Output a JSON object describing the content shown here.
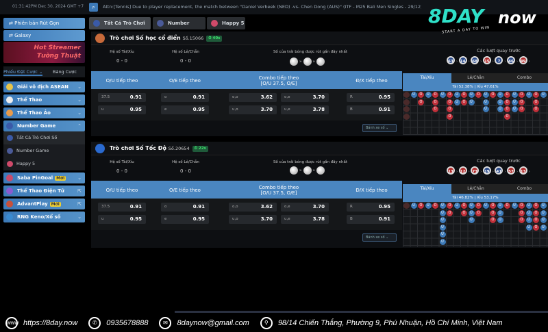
{
  "topbar": {
    "clock": "01:31:42PM Dec 30, 2024 GMT +7",
    "ticker": "Attn:[Tennis] Due to player replacement, the match between \"Daniel Verbeek (NED) -vs- Chen Dong (AUS)\" (ITF - M25 Bali Men Singles - 29/12). All bets taken ... REFUNDED. Parlay counts"
  },
  "logo": {
    "brand": "8DAY",
    "suffix": "now",
    "tagline": "START A DAY TO WIN"
  },
  "sidebar": {
    "version_btn": "Phiên bản Rút Gọn",
    "galaxy_btn": "Galaxy",
    "banner": [
      "Hot Streamer",
      "Tường Thuật"
    ],
    "tab_bets": "Phiếu Đặt Cược",
    "tab_table": "Bảng Cược",
    "menus": [
      {
        "label": "Giải vô địch ASEAN"
      },
      {
        "label": "Thể Thao"
      },
      {
        "label": "Thể Thao Ảo"
      },
      {
        "label": "Number Game"
      }
    ],
    "sub": [
      "Tất Cả Trò Chơi Số",
      "Number Game",
      "Happy 5"
    ],
    "menus2": [
      {
        "label": "Saba PinGoal",
        "badge": "Mới"
      },
      {
        "label": "Thể Thao Điện Tử"
      },
      {
        "label": "AdvantPlay",
        "badge": "Mới"
      },
      {
        "label": "RNG Keno/Xổ số"
      }
    ]
  },
  "tabs": [
    "Tất Cả Trò Chơi Số",
    "Number Game",
    "Happy 5"
  ],
  "panels": [
    {
      "title": "Trò chơi Số học cổ điển",
      "number": "Số.15066",
      "timer": "40s",
      "stat_ou_label": "Hệ số Tài/Xỉu",
      "stat_ou": "0 - 0",
      "stat_oe_label": "Hệ số Lẻ/Chẵn",
      "stat_oe": "0 - 0",
      "balls_label": "Số của trái bóng được rút gần đây nhất",
      "headers": [
        "O/U tiếp theo",
        "O/E tiếp theo",
        "Combo tiếp theo\n[O/U 37.5, O/E]",
        "Đ/X tiếp theo"
      ],
      "odds": {
        "ou": [
          [
            "37.5",
            "0.91"
          ],
          [
            "u",
            "0.95"
          ]
        ],
        "oe": [
          [
            "o",
            "0.91"
          ],
          [
            "e",
            "0.95"
          ]
        ],
        "combo": [
          [
            "o,o",
            "3.62"
          ],
          [
            "o,e",
            "3.70"
          ],
          [
            "u,o",
            "3.70"
          ],
          [
            "u,e",
            "3.78"
          ]
        ],
        "dx": [
          [
            "R",
            "0.95"
          ],
          [
            "B",
            "0.91"
          ]
        ]
      },
      "dropdown": "Bánh xe số",
      "prev_label": "Các lượt quay trước",
      "prev": [
        {
          "n": "63",
          "c": "#2a4a8a"
        },
        {
          "n": "14",
          "c": "#2a4a8a"
        },
        {
          "n": "68",
          "c": "#2a4a8a"
        },
        {
          "n": "15",
          "c": "#b02a2a"
        },
        {
          "n": "7",
          "c": "#2a4a8a"
        },
        {
          "n": "46",
          "c": "#2a4a8a"
        },
        {
          "n": "49",
          "c": "#b02a2a"
        }
      ],
      "road_tabs": [
        "Tài/Xỉu",
        "Lẻ/Chẵn",
        "Combo"
      ],
      "pct": "Tài 52.38% | Xỉu 47.61%",
      "road": [
        "dUOUOUOUOUOUOUOUOUOU",
        "d.O.O.OUOU.U.UOUO.O.",
        "d...O.O....U.UOUO.O.",
        "d.....O.......O....."
      ]
    },
    {
      "title": "Trò chơi Số Tốc Độ",
      "number": "Số.20654",
      "timer": "22s",
      "stat_ou_label": "Hệ số Tài/Xỉu",
      "stat_ou": "0 - 0",
      "stat_oe_label": "Hệ số Lẻ/Chẵn",
      "stat_oe": "0 - 0",
      "balls_label": "Số của trái bóng được rút gần đây nhất",
      "headers": [
        "O/U tiếp theo",
        "O/E tiếp theo",
        "Combo tiếp theo\n[O/U 37.5, O/E]",
        "Đ/X tiếp theo"
      ],
      "odds": {
        "ou": [
          [
            "37.5",
            "0.91"
          ],
          [
            "u",
            "0.95"
          ]
        ],
        "oe": [
          [
            "o",
            "0.91"
          ],
          [
            "e",
            "0.95"
          ]
        ],
        "combo": [
          [
            "o,o",
            "3.62"
          ],
          [
            "o,e",
            "3.70"
          ],
          [
            "u,o",
            "3.70"
          ],
          [
            "u,e",
            "3.78"
          ]
        ],
        "dx": [
          [
            "R",
            "0.95"
          ],
          [
            "B",
            "0.91"
          ]
        ]
      },
      "dropdown": "Bánh xe số",
      "prev_label": "Các lượt quay trước",
      "prev": [
        {
          "n": "13",
          "c": "#b02a2a"
        },
        {
          "n": "12",
          "c": "#b02a2a"
        },
        {
          "n": "73",
          "c": "#b02a2a"
        },
        {
          "n": "19",
          "c": "#2a4a8a"
        },
        {
          "n": "41",
          "c": "#2a4a8a"
        },
        {
          "n": "57",
          "c": "#b02a2a"
        },
        {
          "n": "13",
          "c": "#b02a2a"
        }
      ],
      "road_tabs": [
        "Tài/Xỉu",
        "Lẻ/Chẵn",
        "Combo"
      ],
      "pct": "Tài 46.82% | Xỉu 53.17%",
      "road": [
        "dUOUOUOUOUOUOUOUOUOU",
        ".....UO.OUO.OU..OUOU",
        ".....U...U..OU..OUOU",
        ".....U...........UOU",
        ".....U..............",
        ".....U.............."
      ]
    }
  ],
  "colors": {
    "accent": "#4a86c0",
    "over": "#c0303a",
    "under": "#3d7ab8"
  },
  "footer": {
    "website": "https://8day.now",
    "phone": "0935678888",
    "email": "8daynow@gmail.com",
    "address": "98/14 Chiến Thắng, Phường 9, Phú Nhuận, Hồ Chí Minh, Việt Nam"
  }
}
